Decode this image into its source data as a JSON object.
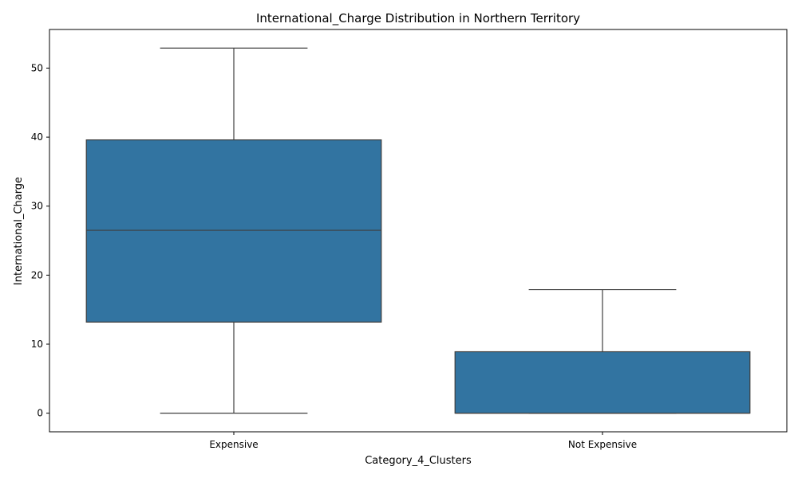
{
  "chart_data": {
    "type": "box",
    "title": "International_Charge Distribution in Northern Territory",
    "xlabel": "Category_4_Clusters",
    "ylabel": "International_Charge",
    "ylim": [
      -2.7,
      55.6
    ],
    "yticks": [
      0,
      10,
      20,
      30,
      40,
      50
    ],
    "ytick_labels": [
      "0",
      "10",
      "20",
      "30",
      "40",
      "50"
    ],
    "grid": false,
    "legend": "none",
    "colors": {
      "box": "#3274a1",
      "line": "#3f3f3f",
      "axes": "#000000"
    },
    "categories": [
      "Expensive",
      "Not Expensive"
    ],
    "boxes": [
      {
        "category": "Expensive",
        "whisker_low": 0,
        "q1": 13.2,
        "median": 26.5,
        "q3": 39.6,
        "whisker_high": 52.9
      },
      {
        "category": "Not Expensive",
        "whisker_low": 0,
        "q1": 0,
        "median": 0,
        "q3": 8.9,
        "whisker_high": 17.9
      }
    ]
  }
}
